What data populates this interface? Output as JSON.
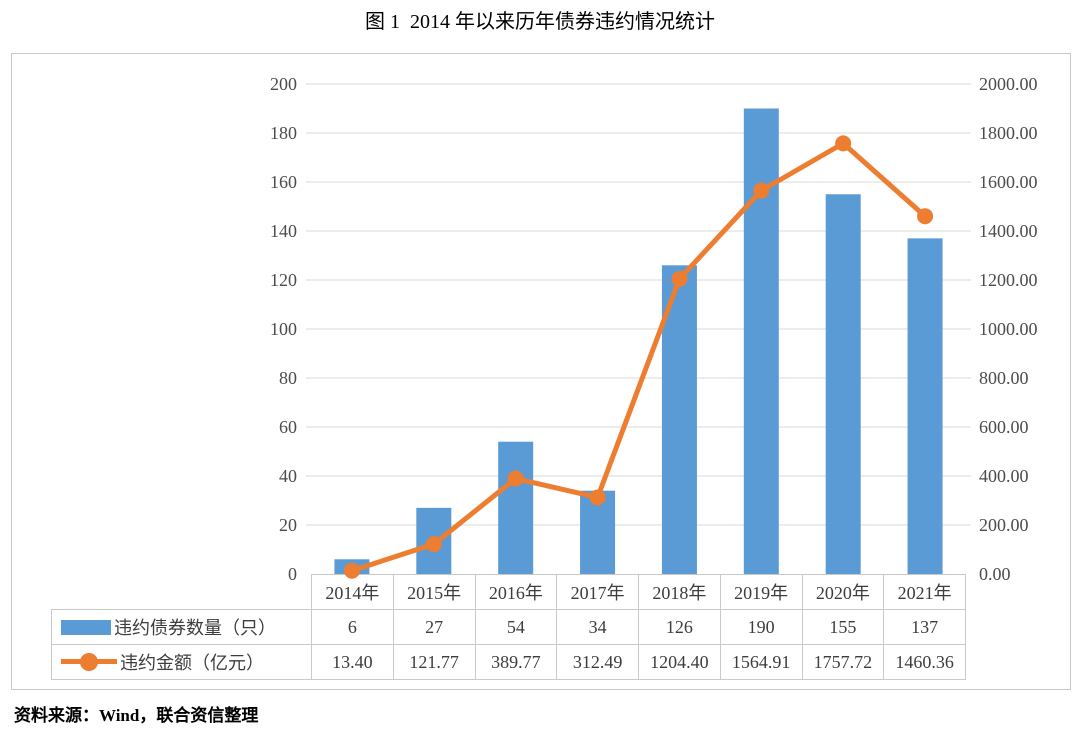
{
  "source_note": "资料来源：Wind，联合资信整理",
  "colors": {
    "bar": "#5B9BD5",
    "line": "#ED7D31",
    "grid": "#D9D9D9",
    "border": "#C9C9C9",
    "axis_text": "#4C4C4C",
    "table_text": "#3D3D3D"
  },
  "chart_data": {
    "type": "combo-bar-line",
    "title": "图 1  2014 年以来历年债券违约情况统计",
    "categories": [
      "2014年",
      "2015年",
      "2016年",
      "2017年",
      "2018年",
      "2019年",
      "2020年",
      "2021年"
    ],
    "series": [
      {
        "name": "违约债券数量（只）",
        "type": "bar",
        "axis": "left",
        "color": "#5B9BD5",
        "values": [
          6,
          27,
          54,
          34,
          126,
          190,
          155,
          137
        ],
        "value_labels": [
          "6",
          "27",
          "54",
          "34",
          "126",
          "190",
          "155",
          "137"
        ]
      },
      {
        "name": "违约金额（亿元）",
        "type": "line",
        "axis": "right",
        "color": "#ED7D31",
        "values": [
          13.4,
          121.77,
          389.77,
          312.49,
          1204.4,
          1564.91,
          1757.72,
          1460.36
        ],
        "value_labels": [
          "13.40",
          "121.77",
          "389.77",
          "312.49",
          "1204.40",
          "1564.91",
          "1757.72",
          "1460.36"
        ]
      }
    ],
    "left_axis": {
      "min": 0,
      "max": 200,
      "step": 20,
      "tick_labels": [
        "0",
        "20",
        "40",
        "60",
        "80",
        "100",
        "120",
        "140",
        "160",
        "180",
        "200"
      ]
    },
    "right_axis": {
      "min": 0,
      "max": 2000,
      "step": 200,
      "tick_labels": [
        "0.00",
        "200.00",
        "400.00",
        "600.00",
        "800.00",
        "1000.00",
        "1200.00",
        "1400.00",
        "1600.00",
        "1800.00",
        "2000.00"
      ]
    },
    "grid": true,
    "legend_position": "data-table-left"
  }
}
